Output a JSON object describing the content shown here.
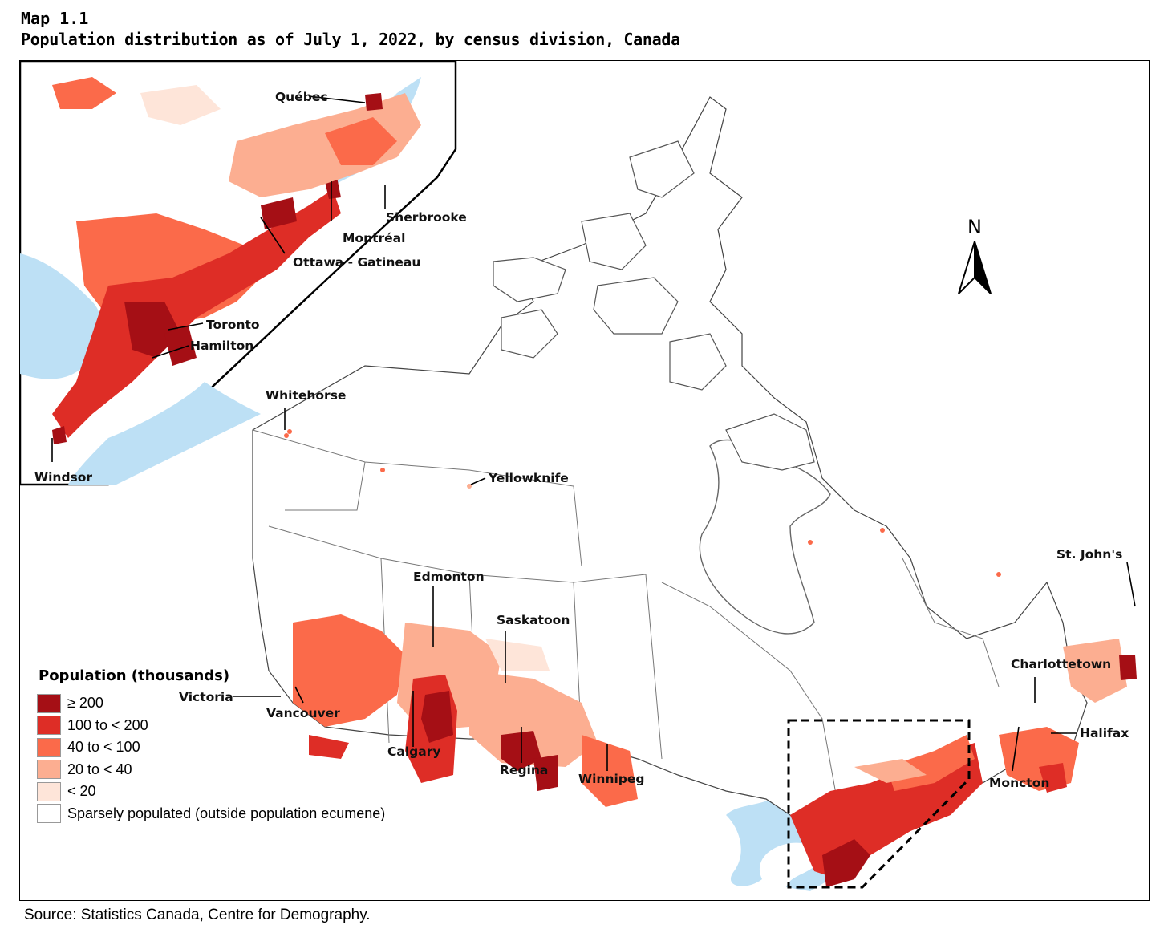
{
  "header": {
    "map_number": "Map 1.1",
    "title": "Population distribution as of July 1, 2022, by census division, Canada"
  },
  "colors": {
    "class_ge_200": "#a50f15",
    "class_100_200": "#de2d26",
    "class_40_100": "#fb6a4a",
    "class_20_40": "#fcae91",
    "class_lt_20": "#fee5d9",
    "sparse": "#ffffff",
    "water": "#bde0f5",
    "boundary": "#666666"
  },
  "north_arrow": {
    "label": "N"
  },
  "cities": {
    "quebec": "Québec",
    "sherbrooke": "Sherbrooke",
    "montreal": "Montréal",
    "ottawa_gatineau": "Ottawa - Gatineau",
    "toronto": "Toronto",
    "hamilton": "Hamilton",
    "windsor": "Windsor",
    "whitehorse": "Whitehorse",
    "yellowknife": "Yellowknife",
    "edmonton": "Edmonton",
    "saskatoon": "Saskatoon",
    "calgary": "Calgary",
    "regina": "Regina",
    "winnipeg": "Winnipeg",
    "victoria": "Victoria",
    "vancouver": "Vancouver",
    "st_johns": "St. John's",
    "charlottetown": "Charlottetown",
    "halifax": "Halifax",
    "moncton": "Moncton"
  },
  "legend": {
    "title": "Population (thousands)",
    "items": [
      {
        "label": "≥ 200",
        "color": "#a50f15"
      },
      {
        "label": "100 to < 200",
        "color": "#de2d26"
      },
      {
        "label": "40 to < 100",
        "color": "#fb6a4a"
      },
      {
        "label": "20 to < 40",
        "color": "#fcae91"
      },
      {
        "label": "< 20",
        "color": "#fee5d9"
      },
      {
        "label": "Sparsely populated (outside population ecumene)",
        "color": "#ffffff"
      }
    ]
  },
  "source": "Source: Statistics Canada, Centre for Demography."
}
